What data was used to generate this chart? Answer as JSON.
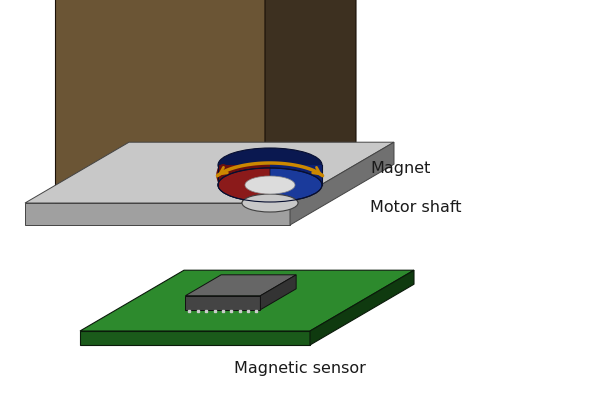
{
  "background_color": "#ffffff",
  "motor_body_front": "#6b5535",
  "motor_body_side": "#3d3020",
  "motor_body_top": "#8a7045",
  "mount_plate_top": "#c8c8c8",
  "mount_plate_front": "#a0a0a0",
  "mount_plate_side": "#707070",
  "shaft_mid": "#909090",
  "shaft_light": "#c8c8c8",
  "shaft_dark": "#585858",
  "shaft_white_strip": "#e0e0e0",
  "magnet_red_top": "#8b1a1a",
  "magnet_red_side": "#6a1010",
  "magnet_blue_top": "#1a3a9b",
  "magnet_blue_side": "#0d2070",
  "magnet_blue_dark": "#0a1850",
  "magnet_white": "#e0e0e0",
  "arrow_color": "#cc8800",
  "pcb_top": "#2d8a2d",
  "pcb_front": "#1a5a1a",
  "pcb_side": "#0f3a0f",
  "chip_top": "#666666",
  "chip_front": "#444444",
  "chip_side": "#333333",
  "pin_color": "#cccccc",
  "label_color": "#1a1a1a",
  "label_motor": "Motor shaft",
  "label_magnet": "Magnet",
  "label_sensor": "Magnetic sensor"
}
